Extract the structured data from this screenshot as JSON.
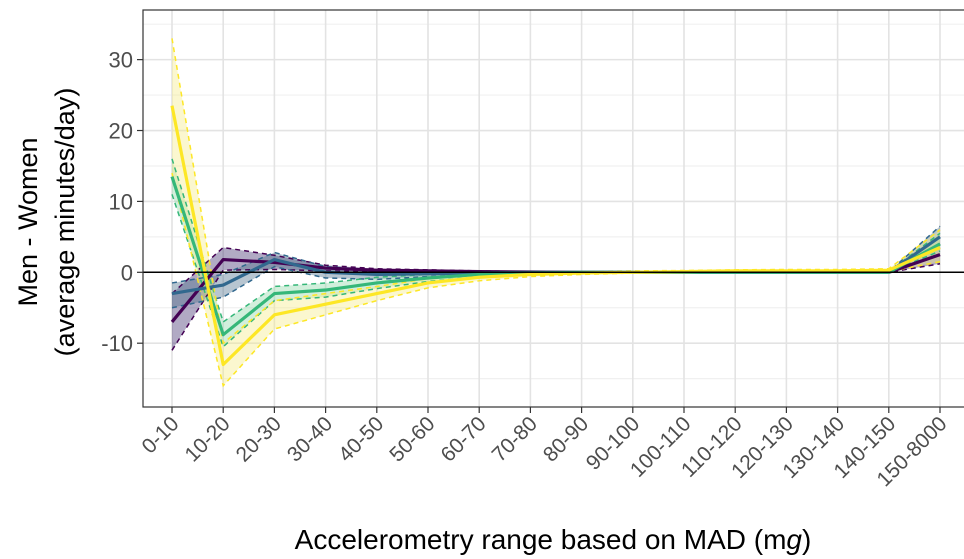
{
  "chart_data": {
    "type": "line",
    "xlabel": "Accelerometry range based on MAD (mg)",
    "xlabel_parts": {
      "pre": "Accelerometry range based on MAD (m",
      "italic": "g",
      "post": ")"
    },
    "ylabel": [
      "Men - Women",
      "(average minutes/day)"
    ],
    "categories": [
      "0-10",
      "10-20",
      "20-30",
      "30-40",
      "40-50",
      "50-60",
      "60-70",
      "70-80",
      "80-90",
      "90-100",
      "100-110",
      "110-120",
      "120-130",
      "130-140",
      "140-150",
      "150-8000"
    ],
    "ylim": [
      -19,
      37
    ],
    "yticks": [
      -10,
      0,
      10,
      20,
      30
    ],
    "ytick_labels": [
      "-10",
      "0",
      "10",
      "20",
      "30"
    ],
    "grid": true,
    "reference_line": 0,
    "series": [
      {
        "color": "#440154",
        "fill": "#3b2a6b",
        "values": [
          -7,
          1.8,
          1.4,
          0.6,
          0.3,
          0.2,
          0.1,
          0.05,
          0,
          0,
          0,
          0,
          0,
          0,
          0,
          2.5
        ],
        "lower": [
          -11,
          0.3,
          0.4,
          0.2,
          0.1,
          0.05,
          0,
          0,
          0,
          0,
          0,
          0,
          0,
          0,
          0,
          1.2
        ],
        "upper": [
          -3,
          3.5,
          2.4,
          1.0,
          0.5,
          0.35,
          0.2,
          0.1,
          0.05,
          0.05,
          0.05,
          0.05,
          0.05,
          0.05,
          0.05,
          4.0
        ]
      },
      {
        "color": "#31688e",
        "fill": "#4a6f8a",
        "values": [
          -3,
          -1.8,
          1.8,
          0,
          -0.3,
          -0.2,
          -0.1,
          0,
          0,
          0,
          0,
          0,
          0,
          0,
          0,
          5
        ],
        "lower": [
          -5,
          -3.5,
          0.8,
          -0.8,
          -1,
          -0.6,
          -0.3,
          -0.1,
          0,
          0,
          0,
          0,
          0,
          0,
          0,
          3.5
        ],
        "upper": [
          -1.5,
          -0.3,
          2.8,
          0.8,
          0.3,
          0.2,
          0.1,
          0.1,
          0.05,
          0.05,
          0.05,
          0.05,
          0.05,
          0.05,
          0.05,
          6.5
        ]
      },
      {
        "color": "#35b779",
        "fill": "#8fd6a8",
        "values": [
          13.5,
          -8.8,
          -3,
          -2.5,
          -1.5,
          -0.8,
          -0.3,
          -0.1,
          0,
          0,
          0,
          0,
          0,
          0,
          0,
          4
        ],
        "lower": [
          11,
          -10.5,
          -4,
          -3.5,
          -2.3,
          -1.3,
          -0.6,
          -0.3,
          -0.1,
          -0.05,
          0,
          0,
          0,
          0,
          0,
          3
        ],
        "upper": [
          16,
          -7,
          -2,
          -1.5,
          -0.7,
          -0.3,
          -0.05,
          0.05,
          0.05,
          0.05,
          0.05,
          0.05,
          0.05,
          0.05,
          0.1,
          5.5
        ]
      },
      {
        "color": "#fde725",
        "fill": "#f4ec86",
        "values": [
          23.5,
          -13,
          -6,
          -4.5,
          -3,
          -1.5,
          -0.7,
          -0.3,
          -0.1,
          0,
          0.1,
          0.2,
          0.2,
          0.2,
          0.3,
          3.5
        ],
        "lower": [
          14,
          -16,
          -8,
          -6,
          -4,
          -2.2,
          -1.2,
          -0.6,
          -0.3,
          -0.1,
          -0.05,
          0.05,
          0.05,
          0.05,
          0.1,
          1.5
        ],
        "upper": [
          33,
          -10,
          -4,
          -3,
          -2,
          -0.9,
          -0.3,
          -0.05,
          0.1,
          0.2,
          0.25,
          0.35,
          0.4,
          0.4,
          0.5,
          6.0
        ]
      }
    ]
  }
}
